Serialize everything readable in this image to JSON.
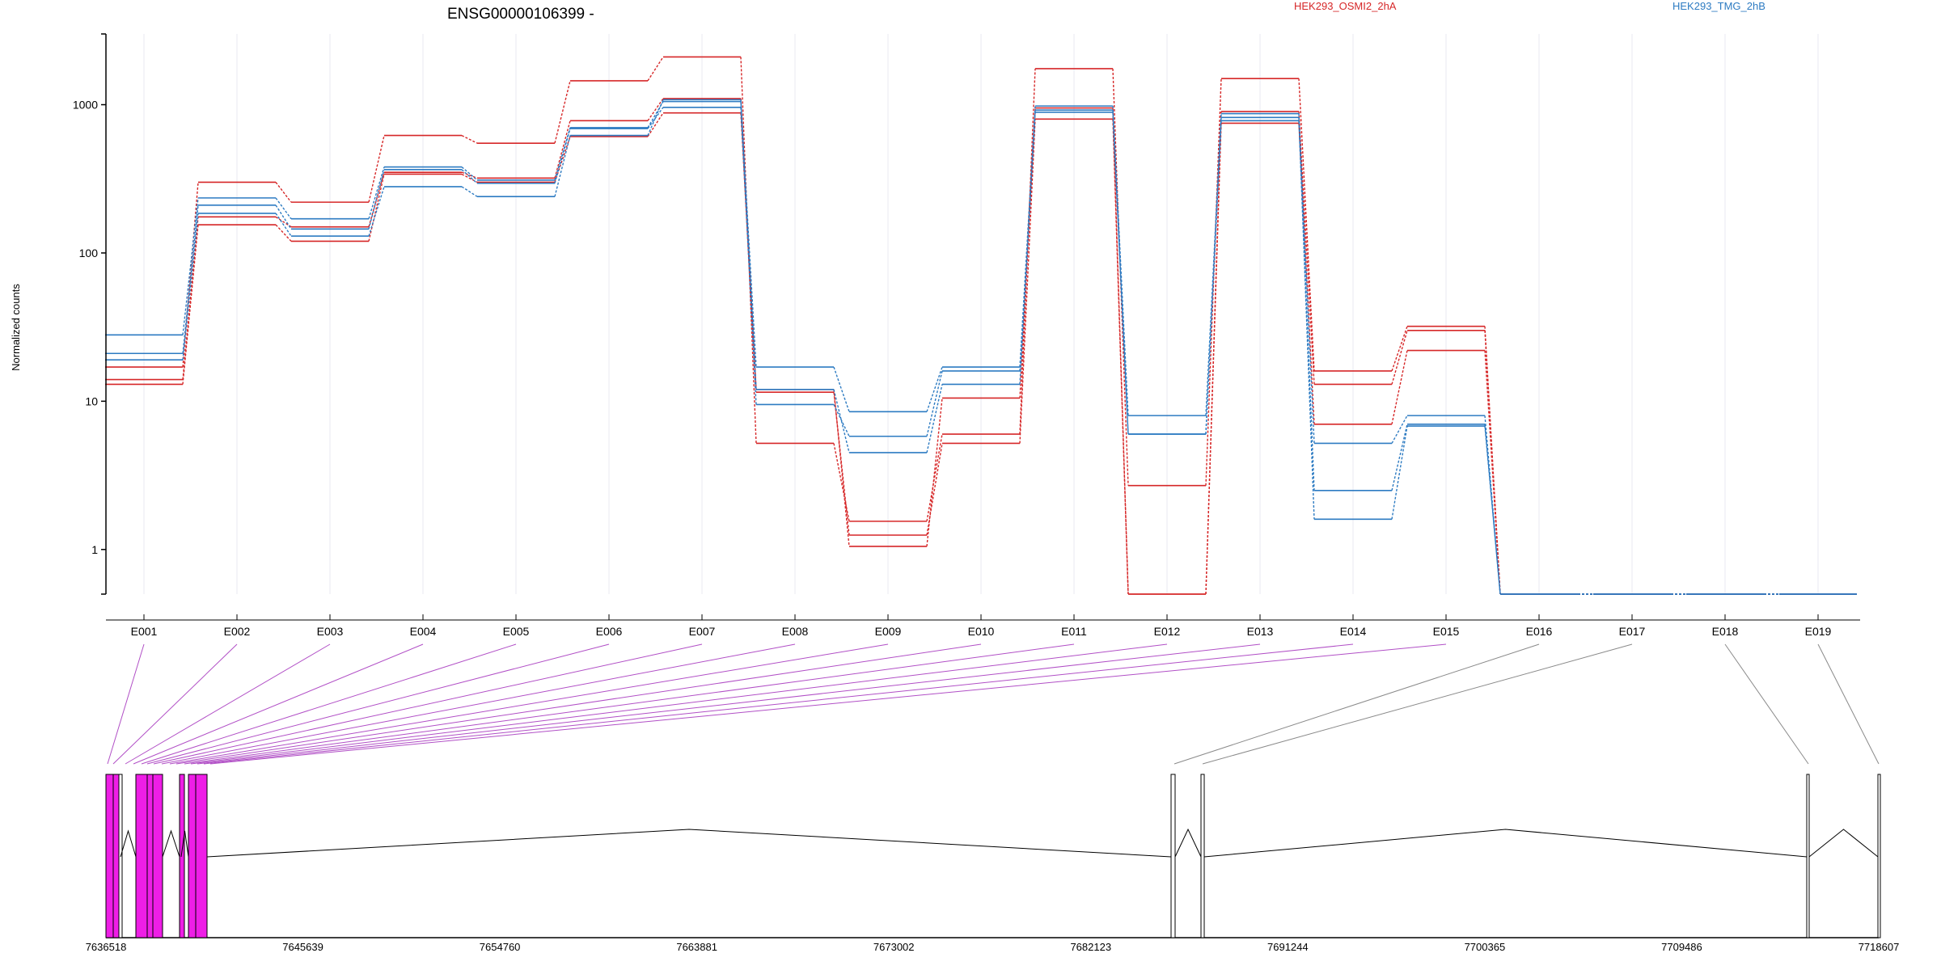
{
  "chart_data": {
    "type": "line",
    "title": "ENSG00000106399 -",
    "ylabel": "Normalized counts",
    "yscale": "log",
    "ylim": [
      0.5,
      3000
    ],
    "y_ticks": [
      1,
      10,
      100,
      1000
    ],
    "y_tick_labels": [
      "1",
      "10",
      "100",
      "1000"
    ],
    "categories": [
      "E001",
      "E002",
      "E003",
      "E004",
      "E005",
      "E006",
      "E007",
      "E008",
      "E009",
      "E010",
      "E011",
      "E012",
      "E013",
      "E014",
      "E015",
      "E016",
      "E017",
      "E018",
      "E019"
    ],
    "legend": [
      {
        "label": "HEK293_OSMI2_2hA",
        "color": "#d62728"
      },
      {
        "label": "HEK293_TMG_2hB",
        "color": "#2d7bc2"
      }
    ],
    "series": [
      {
        "group": "HEK293_OSMI2_2hA",
        "color": "#d62728",
        "values": [
          17,
          300,
          220,
          620,
          550,
          1450,
          2100,
          5.2,
          1.55,
          6,
          1750,
          2.7,
          1500,
          16,
          32,
          0.5,
          0.5,
          0.5,
          0.5
        ]
      },
      {
        "group": "HEK293_OSMI2_2hA",
        "color": "#d62728",
        "values": [
          14,
          175,
          150,
          350,
          320,
          780,
          1100,
          12,
          1.05,
          10.5,
          950,
          0.5,
          900,
          13,
          30,
          0.5,
          0.5,
          0.5,
          0.5
        ]
      },
      {
        "group": "HEK293_OSMI2_2hA",
        "color": "#d62728",
        "values": [
          13,
          155,
          120,
          340,
          300,
          610,
          880,
          11.5,
          1.25,
          5.2,
          800,
          0.5,
          750,
          7,
          22,
          0.5,
          0.5,
          0.5,
          0.5
        ]
      },
      {
        "group": "HEK293_TMG_2hB",
        "color": "#2d7bc2",
        "values": [
          28,
          235,
          170,
          380,
          310,
          700,
          1050,
          17,
          8.5,
          17,
          980,
          8,
          870,
          5.2,
          8,
          0.5,
          0.5,
          0.5,
          0.5
        ]
      },
      {
        "group": "HEK293_TMG_2hB",
        "color": "#2d7bc2",
        "values": [
          21,
          210,
          145,
          365,
          295,
          690,
          960,
          9.5,
          5.8,
          16,
          920,
          6,
          780,
          2.5,
          7,
          0.5,
          0.5,
          0.5,
          0.5
        ]
      },
      {
        "group": "HEK293_TMG_2hB",
        "color": "#2d7bc2",
        "values": [
          19,
          185,
          130,
          280,
          240,
          620,
          1080,
          12,
          4.5,
          13,
          890,
          6,
          820,
          1.6,
          6.8,
          0.5,
          0.5,
          0.5,
          0.5
        ]
      }
    ],
    "gene_model": {
      "x_ticks": [
        "7636518",
        "7645639",
        "7654760",
        "7663881",
        "7673002",
        "7682123",
        "7691244",
        "7700365",
        "7709486",
        "7718607"
      ],
      "highlight_color": "#ee1ee6",
      "highlighted_exons": [
        "E001",
        "E002",
        "E003",
        "E004",
        "E005",
        "E006",
        "E007",
        "E008",
        "E009",
        "E010",
        "E011",
        "E012",
        "E013",
        "E014",
        "E015"
      ]
    }
  }
}
